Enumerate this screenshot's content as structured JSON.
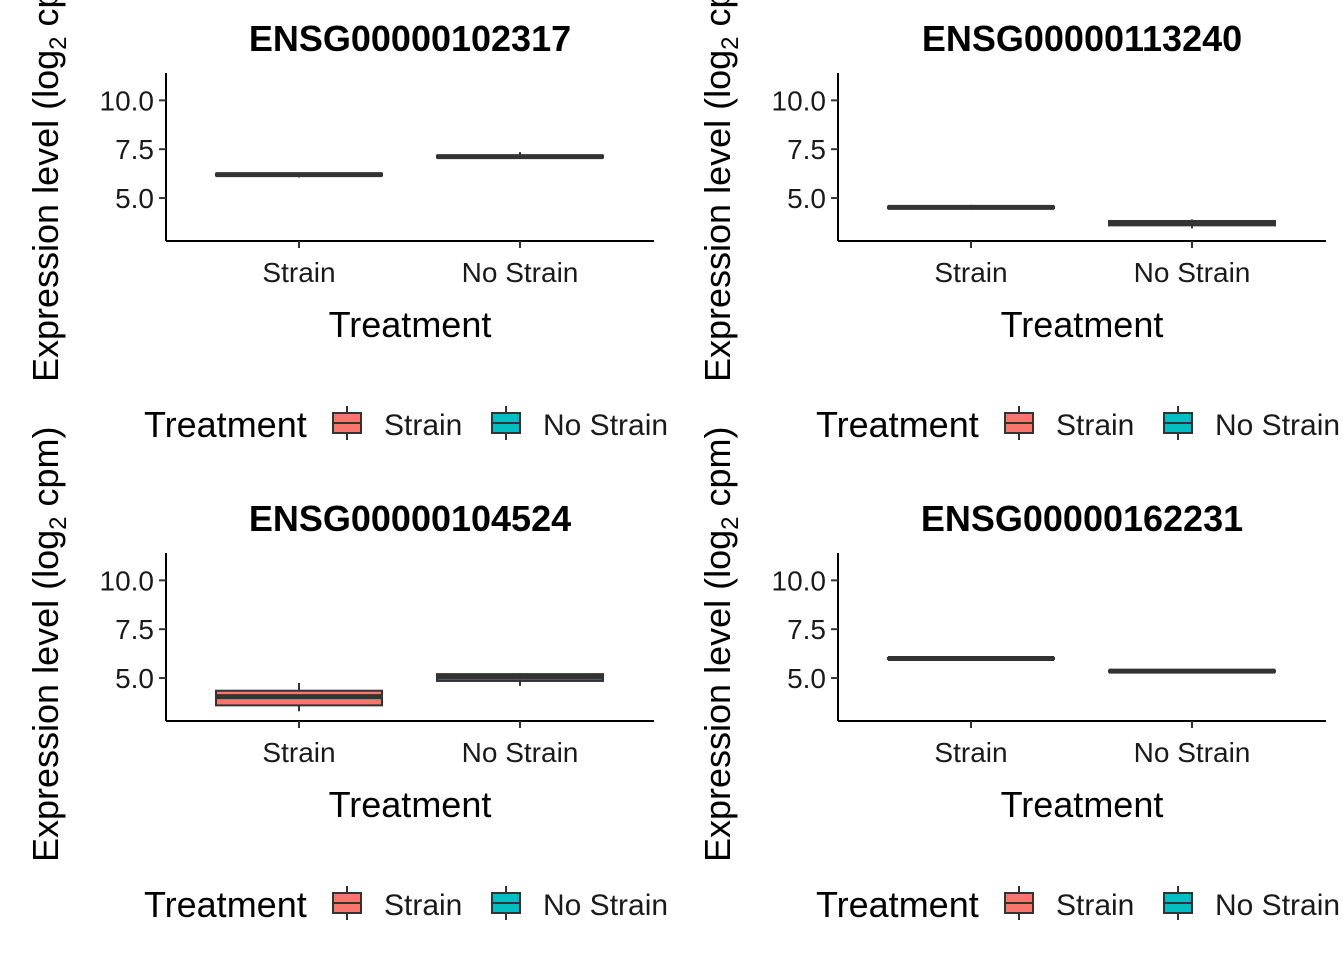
{
  "chart_data": [
    {
      "type": "box",
      "title": "ENSG00000102317",
      "xlabel": "Treatment",
      "ylabel": "Expression level (log",
      "ylabel_sub": "2",
      "ylabel_tail": " cpm)",
      "categories": [
        "Strain",
        "No Strain"
      ],
      "yticks": [
        5.0,
        7.5,
        10.0
      ],
      "ytick_labels": [
        "5.0",
        "7.5",
        "10.0"
      ],
      "ylim": [
        2.8,
        11.4
      ],
      "boxes": [
        {
          "category": "Strain",
          "min": 6.05,
          "q1": 6.15,
          "median": 6.2,
          "q3": 6.25,
          "max": 6.3,
          "fill": "#F8766D"
        },
        {
          "category": "No Strain",
          "min": 7.05,
          "q1": 7.07,
          "median": 7.12,
          "q3": 7.17,
          "max": 7.35,
          "fill": "#00BFC4"
        }
      ],
      "legend": {
        "title": "Treatment",
        "entries": [
          {
            "label": "Strain",
            "color": "#F8766D"
          },
          {
            "label": "No Strain",
            "color": "#00BFC4"
          }
        ],
        "position": "bottom"
      }
    },
    {
      "type": "box",
      "title": "ENSG00000113240",
      "xlabel": "Treatment",
      "ylabel": "Expression level (log",
      "ylabel_sub": "2",
      "ylabel_tail": " cpm)",
      "categories": [
        "Strain",
        "No Strain"
      ],
      "yticks": [
        5.0,
        7.5,
        10.0
      ],
      "ytick_labels": [
        "5.0",
        "7.5",
        "10.0"
      ],
      "ylim": [
        2.8,
        11.4
      ],
      "boxes": [
        {
          "category": "Strain",
          "min": 4.4,
          "q1": 4.48,
          "median": 4.52,
          "q3": 4.56,
          "max": 4.65,
          "fill": "#F8766D"
        },
        {
          "category": "No Strain",
          "min": 3.45,
          "q1": 3.6,
          "median": 3.75,
          "q3": 3.82,
          "max": 3.9,
          "fill": "#00BFC4"
        }
      ],
      "legend": {
        "title": "Treatment",
        "entries": [
          {
            "label": "Strain",
            "color": "#F8766D"
          },
          {
            "label": "No Strain",
            "color": "#00BFC4"
          }
        ],
        "position": "bottom"
      }
    },
    {
      "type": "box",
      "title": "ENSG00000104524",
      "xlabel": "Treatment",
      "ylabel": "Expression level (log",
      "ylabel_sub": "2",
      "ylabel_tail": " cpm)",
      "categories": [
        "Strain",
        "No Strain"
      ],
      "yticks": [
        5.0,
        7.5,
        10.0
      ],
      "ytick_labels": [
        "5.0",
        "7.5",
        "10.0"
      ],
      "ylim": [
        2.8,
        11.4
      ],
      "boxes": [
        {
          "category": "Strain",
          "min": 3.3,
          "q1": 3.6,
          "median": 4.05,
          "q3": 4.35,
          "max": 4.75,
          "fill": "#F8766D"
        },
        {
          "category": "No Strain",
          "min": 4.6,
          "q1": 4.85,
          "median": 5.05,
          "q3": 5.2,
          "max": 5.25,
          "fill": "#00BFC4"
        }
      ],
      "legend": {
        "title": "Treatment",
        "entries": [
          {
            "label": "Strain",
            "color": "#F8766D"
          },
          {
            "label": "No Strain",
            "color": "#00BFC4"
          }
        ],
        "position": "bottom"
      }
    },
    {
      "type": "box",
      "title": "ENSG00000162231",
      "xlabel": "Treatment",
      "ylabel": "Expression level (log",
      "ylabel_sub": "2",
      "ylabel_tail": " cpm)",
      "categories": [
        "Strain",
        "No Strain"
      ],
      "yticks": [
        5.0,
        7.5,
        10.0
      ],
      "ytick_labels": [
        "5.0",
        "7.5",
        "10.0"
      ],
      "ylim": [
        2.8,
        11.4
      ],
      "boxes": [
        {
          "category": "Strain",
          "min": 5.95,
          "q1": 5.97,
          "median": 6.0,
          "q3": 6.03,
          "max": 6.05,
          "fill": "#F8766D"
        },
        {
          "category": "No Strain",
          "min": 5.3,
          "q1": 5.32,
          "median": 5.35,
          "q3": 5.38,
          "max": 5.4,
          "fill": "#00BFC4"
        }
      ],
      "legend": {
        "title": "Treatment",
        "entries": [
          {
            "label": "Strain",
            "color": "#F8766D"
          },
          {
            "label": "No Strain",
            "color": "#00BFC4"
          }
        ],
        "position": "bottom"
      }
    }
  ]
}
